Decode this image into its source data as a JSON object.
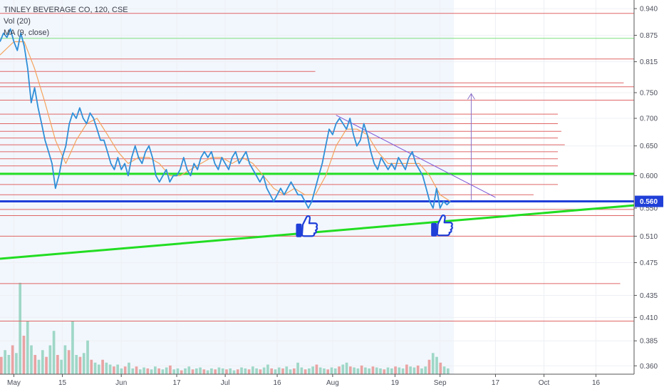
{
  "legend": {
    "title": "TINLEY BEVERAGE CO, 120, CSE",
    "volume": "Vol (20)",
    "ma": "MA (9, close)"
  },
  "chart_data": {
    "type": "line",
    "title": "TINLEY BEVERAGE CO, 120, CSE",
    "y_scale": "log",
    "ylim": [
      0.352,
      0.962
    ],
    "y_ticks": [
      0.94,
      0.875,
      0.815,
      0.75,
      0.7,
      0.65,
      0.6,
      0.55,
      0.51,
      0.475,
      0.435,
      0.41,
      0.385,
      0.36
    ],
    "y_tick_labels": [
      "0.940",
      "0.875",
      "0.815",
      "0.750",
      "0.700",
      "0.650",
      "0.600",
      "0.550",
      "0.510",
      "0.475",
      "0.435",
      "0.410",
      "0.385",
      "0.360"
    ],
    "x_ticks": [
      {
        "date": "2019-05-01",
        "label": "May"
      },
      {
        "date": "2019-05-15",
        "label": "15"
      },
      {
        "date": "2019-06-01",
        "label": "Jun"
      },
      {
        "date": "2019-06-17",
        "label": "17"
      },
      {
        "date": "2019-07-01",
        "label": "Jul"
      },
      {
        "date": "2019-07-16",
        "label": "16"
      },
      {
        "date": "2019-08-01",
        "label": "Aug"
      },
      {
        "date": "2019-08-19",
        "label": "19"
      },
      {
        "date": "2019-09-01",
        "label": "Sep"
      },
      {
        "date": "2019-09-17",
        "label": "17"
      },
      {
        "date": "2019-10-01",
        "label": "Oct"
      },
      {
        "date": "2019-10-16",
        "label": "16"
      }
    ],
    "xlim": [
      "2019-04-27",
      "2019-10-27"
    ],
    "current_price": {
      "value": 0.56,
      "label": "0.560"
    },
    "series": [
      {
        "name": "TINLEY BEVERAGE CO",
        "color": "#2f8fd8",
        "points": [
          [
            "2019-04-27",
            0.86
          ],
          [
            "2019-04-28",
            0.88
          ],
          [
            "2019-04-29",
            0.87
          ],
          [
            "2019-04-30",
            0.89
          ],
          [
            "2019-05-01",
            0.86
          ],
          [
            "2019-05-02",
            0.84
          ],
          [
            "2019-05-03",
            0.88
          ],
          [
            "2019-05-04",
            0.85
          ],
          [
            "2019-05-05",
            0.8
          ],
          [
            "2019-05-06",
            0.73
          ],
          [
            "2019-05-07",
            0.76
          ],
          [
            "2019-05-08",
            0.72
          ],
          [
            "2019-05-09",
            0.69
          ],
          [
            "2019-05-10",
            0.66
          ],
          [
            "2019-05-11",
            0.64
          ],
          [
            "2019-05-12",
            0.62
          ],
          [
            "2019-05-13",
            0.58
          ],
          [
            "2019-05-14",
            0.6
          ],
          [
            "2019-05-15",
            0.63
          ],
          [
            "2019-05-16",
            0.65
          ],
          [
            "2019-05-17",
            0.69
          ],
          [
            "2019-05-18",
            0.71
          ],
          [
            "2019-05-19",
            0.7
          ],
          [
            "2019-05-20",
            0.72
          ],
          [
            "2019-05-21",
            0.7
          ],
          [
            "2019-05-22",
            0.69
          ],
          [
            "2019-05-23",
            0.71
          ],
          [
            "2019-05-24",
            0.7
          ],
          [
            "2019-05-25",
            0.68
          ],
          [
            "2019-05-26",
            0.66
          ],
          [
            "2019-05-27",
            0.66
          ],
          [
            "2019-05-28",
            0.64
          ],
          [
            "2019-05-29",
            0.62
          ],
          [
            "2019-05-30",
            0.61
          ],
          [
            "2019-05-31",
            0.63
          ],
          [
            "2019-06-01",
            0.61
          ],
          [
            "2019-06-02",
            0.62
          ],
          [
            "2019-06-03",
            0.6
          ],
          [
            "2019-06-04",
            0.63
          ],
          [
            "2019-06-05",
            0.65
          ],
          [
            "2019-06-06",
            0.63
          ],
          [
            "2019-06-07",
            0.62
          ],
          [
            "2019-06-08",
            0.64
          ],
          [
            "2019-06-09",
            0.65
          ],
          [
            "2019-06-10",
            0.63
          ],
          [
            "2019-06-11",
            0.6
          ],
          [
            "2019-06-12",
            0.59
          ],
          [
            "2019-06-13",
            0.6
          ],
          [
            "2019-06-14",
            0.61
          ],
          [
            "2019-06-15",
            0.59
          ],
          [
            "2019-06-16",
            0.6
          ],
          [
            "2019-06-17",
            0.6
          ],
          [
            "2019-06-18",
            0.61
          ],
          [
            "2019-06-19",
            0.63
          ],
          [
            "2019-06-20",
            0.61
          ],
          [
            "2019-06-21",
            0.6
          ],
          [
            "2019-06-22",
            0.62
          ],
          [
            "2019-06-23",
            0.61
          ],
          [
            "2019-06-24",
            0.63
          ],
          [
            "2019-06-25",
            0.64
          ],
          [
            "2019-06-26",
            0.63
          ],
          [
            "2019-06-27",
            0.64
          ],
          [
            "2019-06-28",
            0.62
          ],
          [
            "2019-06-29",
            0.61
          ],
          [
            "2019-06-30",
            0.63
          ],
          [
            "2019-07-01",
            0.62
          ],
          [
            "2019-07-02",
            0.61
          ],
          [
            "2019-07-03",
            0.63
          ],
          [
            "2019-07-04",
            0.64
          ],
          [
            "2019-07-05",
            0.62
          ],
          [
            "2019-07-06",
            0.63
          ],
          [
            "2019-07-07",
            0.64
          ],
          [
            "2019-07-08",
            0.62
          ],
          [
            "2019-07-09",
            0.61
          ],
          [
            "2019-07-10",
            0.6
          ],
          [
            "2019-07-11",
            0.59
          ],
          [
            "2019-07-12",
            0.6
          ],
          [
            "2019-07-13",
            0.58
          ],
          [
            "2019-07-14",
            0.57
          ],
          [
            "2019-07-15",
            0.56
          ],
          [
            "2019-07-16",
            0.57
          ],
          [
            "2019-07-17",
            0.58
          ],
          [
            "2019-07-18",
            0.57
          ],
          [
            "2019-07-19",
            0.58
          ],
          [
            "2019-07-20",
            0.59
          ],
          [
            "2019-07-21",
            0.58
          ],
          [
            "2019-07-22",
            0.57
          ],
          [
            "2019-07-23",
            0.57
          ],
          [
            "2019-07-24",
            0.56
          ],
          [
            "2019-07-25",
            0.55
          ],
          [
            "2019-07-26",
            0.56
          ],
          [
            "2019-07-27",
            0.58
          ],
          [
            "2019-07-28",
            0.6
          ],
          [
            "2019-07-29",
            0.62
          ],
          [
            "2019-07-30",
            0.65
          ],
          [
            "2019-07-31",
            0.68
          ],
          [
            "2019-08-01",
            0.67
          ],
          [
            "2019-08-02",
            0.69
          ],
          [
            "2019-08-03",
            0.7
          ],
          [
            "2019-08-04",
            0.69
          ],
          [
            "2019-08-05",
            0.68
          ],
          [
            "2019-08-06",
            0.7
          ],
          [
            "2019-08-07",
            0.67
          ],
          [
            "2019-08-08",
            0.65
          ],
          [
            "2019-08-09",
            0.66
          ],
          [
            "2019-08-10",
            0.69
          ],
          [
            "2019-08-11",
            0.67
          ],
          [
            "2019-08-12",
            0.64
          ],
          [
            "2019-08-13",
            0.62
          ],
          [
            "2019-08-14",
            0.61
          ],
          [
            "2019-08-15",
            0.63
          ],
          [
            "2019-08-16",
            0.62
          ],
          [
            "2019-08-17",
            0.61
          ],
          [
            "2019-08-18",
            0.62
          ],
          [
            "2019-08-19",
            0.61
          ],
          [
            "2019-08-20",
            0.63
          ],
          [
            "2019-08-21",
            0.62
          ],
          [
            "2019-08-22",
            0.61
          ],
          [
            "2019-08-23",
            0.63
          ],
          [
            "2019-08-24",
            0.64
          ],
          [
            "2019-08-25",
            0.62
          ],
          [
            "2019-08-26",
            0.61
          ],
          [
            "2019-08-27",
            0.6
          ],
          [
            "2019-08-28",
            0.58
          ],
          [
            "2019-08-29",
            0.56
          ],
          [
            "2019-08-30",
            0.55
          ],
          [
            "2019-08-31",
            0.58
          ],
          [
            "2019-09-01",
            0.55
          ],
          [
            "2019-09-02",
            0.56
          ],
          [
            "2019-09-03",
            0.555
          ],
          [
            "2019-09-04",
            0.56
          ]
        ]
      },
      {
        "name": "MA (9, close)",
        "color": "#f5a35c",
        "points": [
          [
            "2019-04-27",
            0.83
          ],
          [
            "2019-05-01",
            0.86
          ],
          [
            "2019-05-04",
            0.86
          ],
          [
            "2019-05-07",
            0.8
          ],
          [
            "2019-05-10",
            0.73
          ],
          [
            "2019-05-13",
            0.66
          ],
          [
            "2019-05-16",
            0.62
          ],
          [
            "2019-05-19",
            0.66
          ],
          [
            "2019-05-22",
            0.69
          ],
          [
            "2019-05-25",
            0.7
          ],
          [
            "2019-05-28",
            0.67
          ],
          [
            "2019-05-31",
            0.64
          ],
          [
            "2019-06-03",
            0.62
          ],
          [
            "2019-06-06",
            0.63
          ],
          [
            "2019-06-09",
            0.63
          ],
          [
            "2019-06-12",
            0.62
          ],
          [
            "2019-06-15",
            0.6
          ],
          [
            "2019-06-18",
            0.6
          ],
          [
            "2019-06-21",
            0.61
          ],
          [
            "2019-06-24",
            0.62
          ],
          [
            "2019-06-27",
            0.63
          ],
          [
            "2019-06-30",
            0.63
          ],
          [
            "2019-07-03",
            0.62
          ],
          [
            "2019-07-06",
            0.63
          ],
          [
            "2019-07-09",
            0.62
          ],
          [
            "2019-07-12",
            0.6
          ],
          [
            "2019-07-15",
            0.58
          ],
          [
            "2019-07-18",
            0.57
          ],
          [
            "2019-07-21",
            0.58
          ],
          [
            "2019-07-24",
            0.57
          ],
          [
            "2019-07-27",
            0.57
          ],
          [
            "2019-07-30",
            0.6
          ],
          [
            "2019-08-02",
            0.65
          ],
          [
            "2019-08-05",
            0.68
          ],
          [
            "2019-08-08",
            0.68
          ],
          [
            "2019-08-11",
            0.67
          ],
          [
            "2019-08-14",
            0.64
          ],
          [
            "2019-08-17",
            0.62
          ],
          [
            "2019-08-20",
            0.62
          ],
          [
            "2019-08-23",
            0.62
          ],
          [
            "2019-08-26",
            0.62
          ],
          [
            "2019-08-29",
            0.6
          ],
          [
            "2019-09-01",
            0.57
          ],
          [
            "2019-09-04",
            0.56
          ]
        ]
      }
    ],
    "horizontal_lines": [
      {
        "color": "#e06666",
        "y": 0.928,
        "start": "2019-04-27",
        "end": "2019-10-27"
      },
      {
        "color": "#7fdf7f",
        "y": 0.868,
        "start": "2019-04-27",
        "end": "2019-10-27"
      },
      {
        "color": "#e06666",
        "y": 0.821,
        "start": "2019-04-27",
        "end": "2019-10-27"
      },
      {
        "color": "#e06666",
        "y": 0.794,
        "start": "2019-04-27",
        "end": "2019-07-27"
      },
      {
        "color": "#e06666",
        "y": 0.77,
        "start": "2019-04-27",
        "end": "2019-10-24"
      },
      {
        "color": "#e06666",
        "y": 0.762,
        "start": "2019-04-27",
        "end": "2019-10-27"
      },
      {
        "color": "#e06666",
        "y": 0.735,
        "start": "2019-04-27",
        "end": "2019-10-27"
      },
      {
        "color": "#e06666",
        "y": 0.708,
        "start": "2019-04-27",
        "end": "2019-10-05"
      },
      {
        "color": "#e06666",
        "y": 0.69,
        "start": "2019-04-27",
        "end": "2019-10-05"
      },
      {
        "color": "#e06666",
        "y": 0.676,
        "start": "2019-04-27",
        "end": "2019-10-06"
      },
      {
        "color": "#e06666",
        "y": 0.664,
        "start": "2019-04-27",
        "end": "2019-10-05"
      },
      {
        "color": "#e06666",
        "y": 0.652,
        "start": "2019-04-27",
        "end": "2019-10-07"
      },
      {
        "color": "#e06666",
        "y": 0.64,
        "start": "2019-04-27",
        "end": "2019-10-05"
      },
      {
        "color": "#e06666",
        "y": 0.628,
        "start": "2019-04-27",
        "end": "2019-10-05"
      },
      {
        "color": "#e06666",
        "y": 0.616,
        "start": "2019-04-27",
        "end": "2019-10-05"
      },
      {
        "color": "#22dd22",
        "y": 0.603,
        "start": "2019-04-27",
        "end": "2019-10-27",
        "width": 3
      },
      {
        "color": "#e06666",
        "y": 0.586,
        "start": "2019-04-27",
        "end": "2019-10-05"
      },
      {
        "color": "#e06666",
        "y": 0.57,
        "start": "2019-04-27",
        "end": "2019-09-28"
      },
      {
        "color": "#1f3fd8",
        "y": 0.56,
        "start": "2019-04-27",
        "end": "2019-10-27",
        "width": 3
      },
      {
        "color": "#e06666",
        "y": 0.548,
        "start": "2019-04-27",
        "end": "2019-10-27"
      },
      {
        "color": "#e06666",
        "y": 0.539,
        "start": "2019-04-27",
        "end": "2019-10-27"
      },
      {
        "color": "#e06666",
        "y": 0.51,
        "start": "2019-04-27",
        "end": "2019-10-27"
      },
      {
        "color": "#e06666",
        "y": 0.449,
        "start": "2019-04-27",
        "end": "2019-10-23"
      },
      {
        "color": "#e06666",
        "y": 0.406,
        "start": "2019-04-27",
        "end": "2019-10-27"
      }
    ],
    "trendlines": [
      {
        "color": "#22dd22",
        "width": 3,
        "from": [
          "2019-04-27",
          0.48
        ],
        "to": [
          "2019-10-27",
          0.554
        ]
      },
      {
        "color": "#7b55d6",
        "width": 1,
        "from": [
          "2019-08-02",
          0.706
        ],
        "to": [
          "2019-09-17",
          0.566
        ]
      }
    ],
    "arrow": {
      "color": "#8a70c8",
      "x": "2019-09-10",
      "from": 0.562,
      "to": 0.748
    },
    "volume_bars": [
      0.18,
      0.25,
      0.2,
      0.3,
      0.22,
      0.95,
      0.4,
      0.55,
      0.3,
      0.2,
      0.15,
      0.25,
      0.18,
      0.3,
      0.45,
      0.2,
      0.15,
      0.3,
      0.25,
      0.55,
      0.2,
      0.18,
      0.22,
      0.35,
      0.15,
      0.12,
      0.1,
      0.15,
      0.12,
      0.1,
      0.08,
      0.1,
      0.06,
      0.08,
      0.12,
      0.06,
      0.08,
      0.05,
      0.07,
      0.06,
      0.05,
      0.08,
      0.06,
      0.05,
      0.07,
      0.09,
      0.05,
      0.06,
      0.04,
      0.06,
      0.08,
      0.05,
      0.06,
      0.07,
      0.05,
      0.04,
      0.06,
      0.05,
      0.07,
      0.06,
      0.05,
      0.06,
      0.04,
      0.05,
      0.07,
      0.06,
      0.05,
      0.08,
      0.06,
      0.05,
      0.07,
      0.1,
      0.06,
      0.05,
      0.07,
      0.06,
      0.08,
      0.05,
      0.06,
      0.12,
      0.07,
      0.05,
      0.06,
      0.08,
      0.1,
      0.07,
      0.06,
      0.05,
      0.07,
      0.06,
      0.08,
      0.1,
      0.12,
      0.08,
      0.07,
      0.06,
      0.09,
      0.07,
      0.06,
      0.08,
      0.07,
      0.06,
      0.05,
      0.07,
      0.06,
      0.08,
      0.07,
      0.06,
      0.1,
      0.08,
      0.07,
      0.09,
      0.06,
      0.08,
      0.15,
      0.22,
      0.18,
      0.12,
      0.08,
      0.06
    ]
  }
}
